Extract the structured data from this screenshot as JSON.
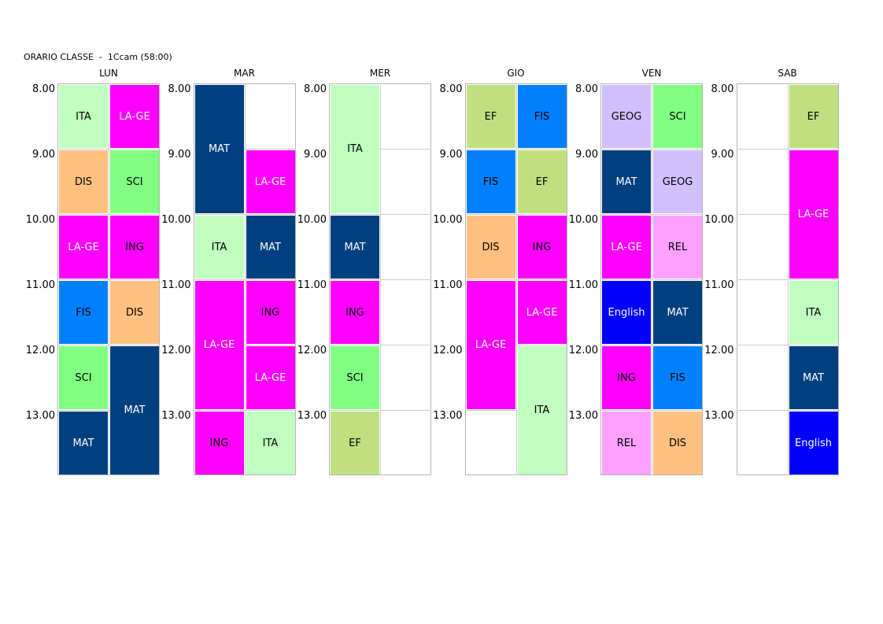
{
  "header": {
    "title": "ORARIO CLASSE  -  1Ccam (58:00)"
  },
  "times": [
    "8.00",
    "9.00",
    "10.00",
    "11.00",
    "12.00",
    "13.00"
  ],
  "subject_colors": {
    "ITA": {
      "bg": "#c0ffc0",
      "fg": "#000000"
    },
    "LA-GE": {
      "bg": "#ff00ff",
      "fg": "#ffffff"
    },
    "DIS": {
      "bg": "#ffc080",
      "fg": "#000000"
    },
    "SCI": {
      "bg": "#80ff80",
      "fg": "#000000"
    },
    "ING": {
      "bg": "#ff00ff",
      "fg": "#000000"
    },
    "FIS": {
      "bg": "#0080ff",
      "fg": "#000000"
    },
    "MAT": {
      "bg": "#004080",
      "fg": "#ffffff"
    },
    "EF": {
      "bg": "#c0e080",
      "fg": "#000000"
    },
    "GEOG": {
      "bg": "#d0c0ff",
      "fg": "#000000"
    },
    "REL": {
      "bg": "#ffa0ff",
      "fg": "#000000"
    },
    "English": {
      "bg": "#0000ff",
      "fg": "#ffffff"
    }
  },
  "days": [
    {
      "name": "LUN",
      "lessons": [
        {
          "subject": "ITA",
          "col": 0,
          "start": 0,
          "span": 1
        },
        {
          "subject": "LA-GE",
          "col": 1,
          "start": 0,
          "span": 1
        },
        {
          "subject": "DIS",
          "col": 0,
          "start": 1,
          "span": 1
        },
        {
          "subject": "SCI",
          "col": 1,
          "start": 1,
          "span": 1
        },
        {
          "subject": "LA-GE",
          "col": 0,
          "start": 2,
          "span": 1
        },
        {
          "subject": "ING",
          "col": 1,
          "start": 2,
          "span": 1
        },
        {
          "subject": "FIS",
          "col": 0,
          "start": 3,
          "span": 1
        },
        {
          "subject": "DIS",
          "col": 1,
          "start": 3,
          "span": 1
        },
        {
          "subject": "SCI",
          "col": 0,
          "start": 4,
          "span": 1
        },
        {
          "subject": "MAT",
          "col": 1,
          "start": 4,
          "span": 2
        },
        {
          "subject": "MAT",
          "col": 0,
          "start": 5,
          "span": 1
        }
      ]
    },
    {
      "name": "MAR",
      "lessons": [
        {
          "subject": "MAT",
          "col": 0,
          "start": 0,
          "span": 2
        },
        {
          "subject": "LA-GE",
          "col": 1,
          "start": 1,
          "span": 1
        },
        {
          "subject": "ITA",
          "col": 0,
          "start": 2,
          "span": 1
        },
        {
          "subject": "MAT",
          "col": 1,
          "start": 2,
          "span": 1
        },
        {
          "subject": "LA-GE",
          "col": 0,
          "start": 3,
          "span": 2
        },
        {
          "subject": "ING",
          "col": 1,
          "start": 3,
          "span": 1
        },
        {
          "subject": "LA-GE",
          "col": 1,
          "start": 4,
          "span": 1
        },
        {
          "subject": "ING",
          "col": 0,
          "start": 5,
          "span": 1
        },
        {
          "subject": "ITA",
          "col": 1,
          "start": 5,
          "span": 1
        }
      ]
    },
    {
      "name": "MER",
      "lessons": [
        {
          "subject": "ITA",
          "col": 0,
          "start": 0,
          "span": 2
        },
        {
          "subject": "MAT",
          "col": 0,
          "start": 2,
          "span": 1
        },
        {
          "subject": "ING",
          "col": 0,
          "start": 3,
          "span": 1
        },
        {
          "subject": "SCI",
          "col": 0,
          "start": 4,
          "span": 1
        },
        {
          "subject": "EF",
          "col": 0,
          "start": 5,
          "span": 1
        }
      ]
    },
    {
      "name": "GIO",
      "lessons": [
        {
          "subject": "EF",
          "col": 0,
          "start": 0,
          "span": 1
        },
        {
          "subject": "FIS",
          "col": 1,
          "start": 0,
          "span": 1
        },
        {
          "subject": "FIS",
          "col": 0,
          "start": 1,
          "span": 1
        },
        {
          "subject": "EF",
          "col": 1,
          "start": 1,
          "span": 1
        },
        {
          "subject": "DIS",
          "col": 0,
          "start": 2,
          "span": 1
        },
        {
          "subject": "ING",
          "col": 1,
          "start": 2,
          "span": 1
        },
        {
          "subject": "LA-GE",
          "col": 0,
          "start": 3,
          "span": 2
        },
        {
          "subject": "LA-GE",
          "col": 1,
          "start": 3,
          "span": 1
        },
        {
          "subject": "ITA",
          "col": 1,
          "start": 4,
          "span": 2
        }
      ]
    },
    {
      "name": "VEN",
      "lessons": [
        {
          "subject": "GEOG",
          "col": 0,
          "start": 0,
          "span": 1
        },
        {
          "subject": "SCI",
          "col": 1,
          "start": 0,
          "span": 1
        },
        {
          "subject": "MAT",
          "col": 0,
          "start": 1,
          "span": 1
        },
        {
          "subject": "GEOG",
          "col": 1,
          "start": 1,
          "span": 1
        },
        {
          "subject": "LA-GE",
          "col": 0,
          "start": 2,
          "span": 1
        },
        {
          "subject": "REL",
          "col": 1,
          "start": 2,
          "span": 1
        },
        {
          "subject": "English",
          "col": 0,
          "start": 3,
          "span": 1
        },
        {
          "subject": "MAT",
          "col": 1,
          "start": 3,
          "span": 1
        },
        {
          "subject": "ING",
          "col": 0,
          "start": 4,
          "span": 1
        },
        {
          "subject": "FIS",
          "col": 1,
          "start": 4,
          "span": 1
        },
        {
          "subject": "REL",
          "col": 0,
          "start": 5,
          "span": 1
        },
        {
          "subject": "DIS",
          "col": 1,
          "start": 5,
          "span": 1
        }
      ]
    },
    {
      "name": "SAB",
      "lessons": [
        {
          "subject": "EF",
          "col": 1,
          "start": 0,
          "span": 1
        },
        {
          "subject": "LA-GE",
          "col": 1,
          "start": 1,
          "span": 2
        },
        {
          "subject": "ITA",
          "col": 1,
          "start": 3,
          "span": 1
        },
        {
          "subject": "MAT",
          "col": 1,
          "start": 4,
          "span": 1
        },
        {
          "subject": "English",
          "col": 1,
          "start": 5,
          "span": 1
        }
      ]
    }
  ]
}
